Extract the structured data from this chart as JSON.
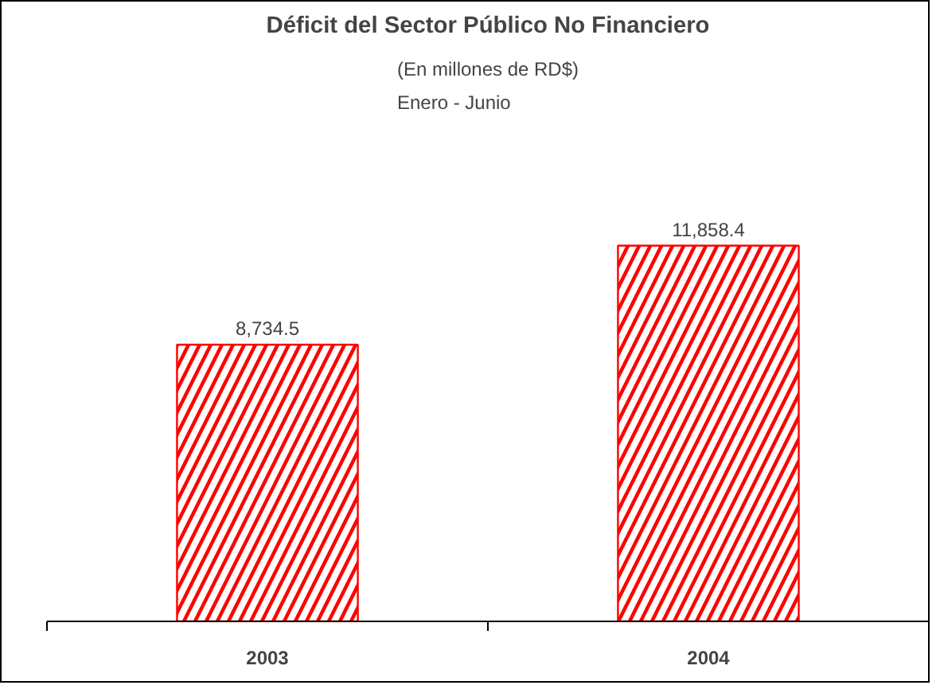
{
  "chart_data": {
    "type": "bar",
    "title": "Déficit del Sector Público No Financiero",
    "subtitle": "(En millones de RD$)\nEnero - Junio",
    "categories": [
      "2003",
      "2004"
    ],
    "values": [
      8734.5,
      11858.4
    ],
    "value_labels": [
      "8,734.5",
      "11,858.4"
    ],
    "color": "#ff0000",
    "grid": false
  }
}
